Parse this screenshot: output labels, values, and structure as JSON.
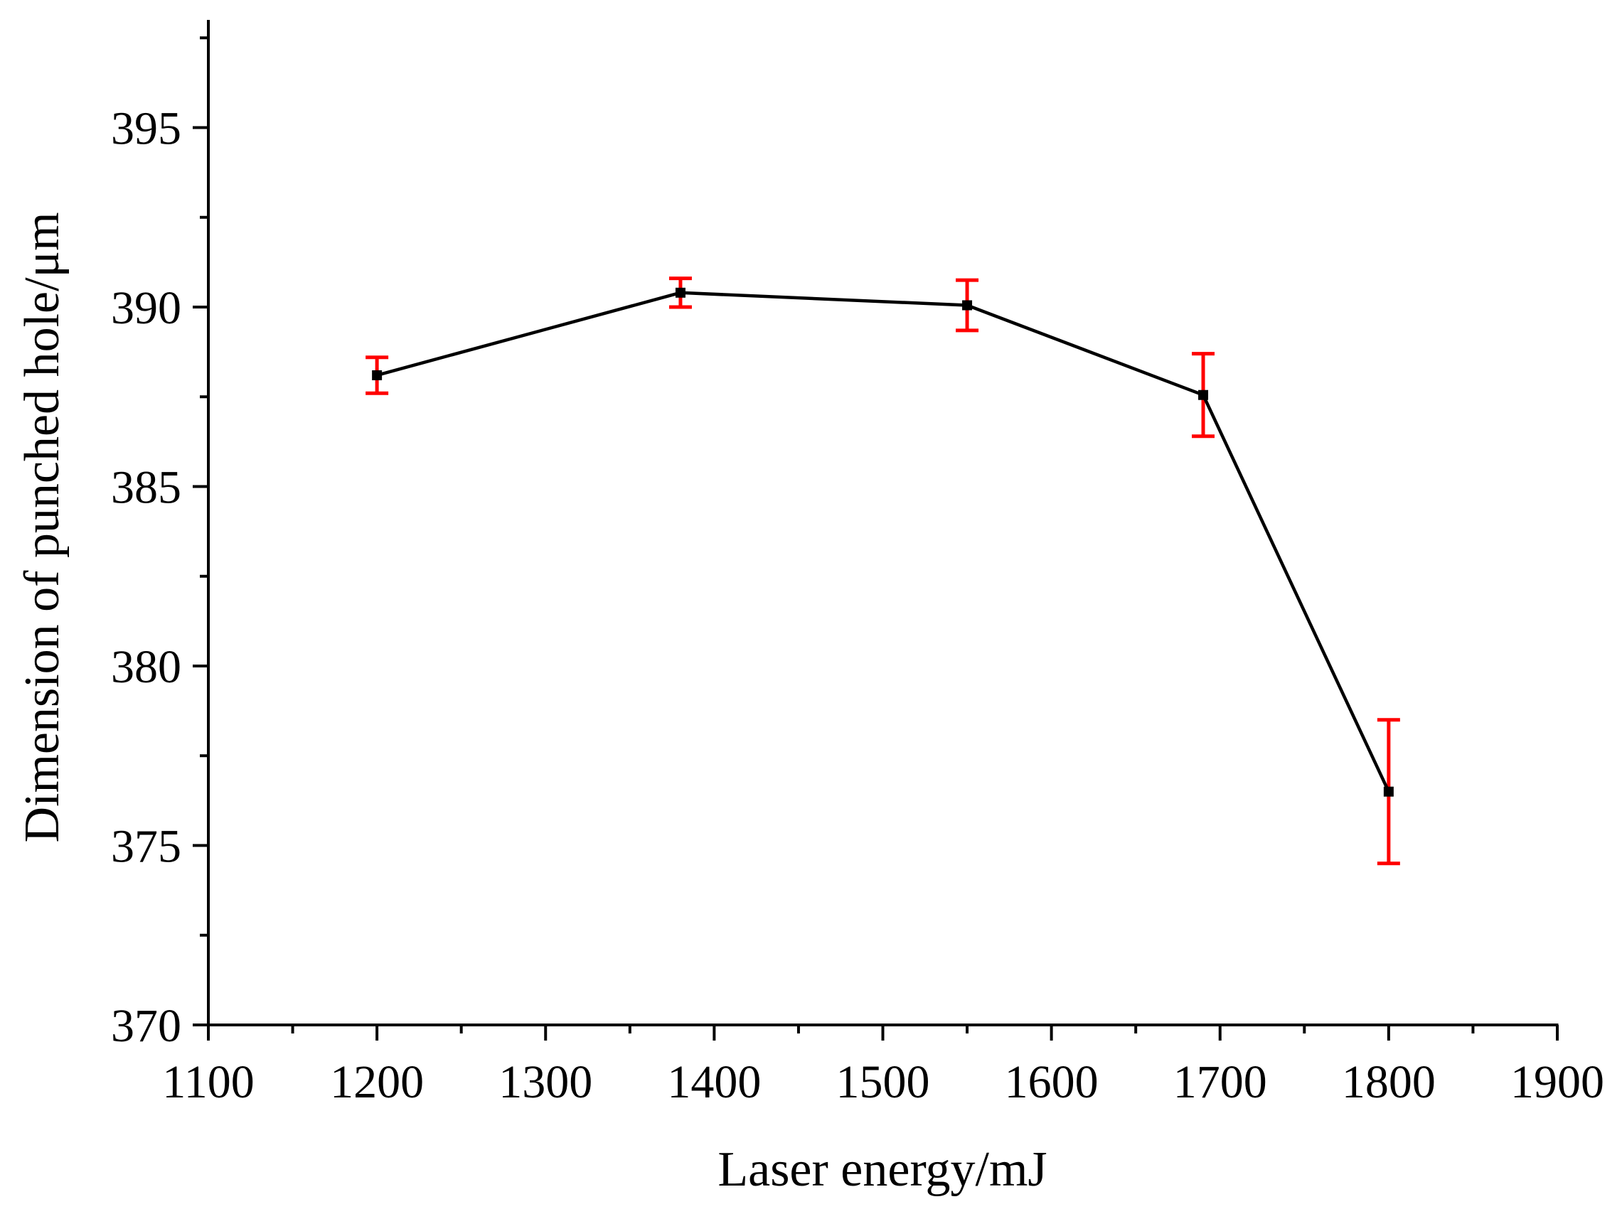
{
  "chart_data": {
    "type": "line",
    "xlabel": "Laser energy/mJ",
    "ylabel": "Dimension of punched hole/μm",
    "xlim": [
      1100,
      1900
    ],
    "ylim": [
      370,
      398
    ],
    "xticks": [
      1100,
      1200,
      1300,
      1400,
      1500,
      1600,
      1700,
      1800,
      1900
    ],
    "yticks": [
      370,
      375,
      380,
      385,
      390,
      395
    ],
    "grid": false,
    "series": [
      {
        "x": [
          1200,
          1380,
          1550,
          1690,
          1800
        ],
        "y": [
          388.1,
          390.4,
          390.05,
          387.55,
          376.5
        ],
        "error": [
          0.5,
          0.4,
          0.7,
          1.15,
          2.0
        ]
      }
    ],
    "colors": {
      "line": "#000000",
      "marker": "#000000",
      "errorbar": "#ff0000"
    }
  }
}
